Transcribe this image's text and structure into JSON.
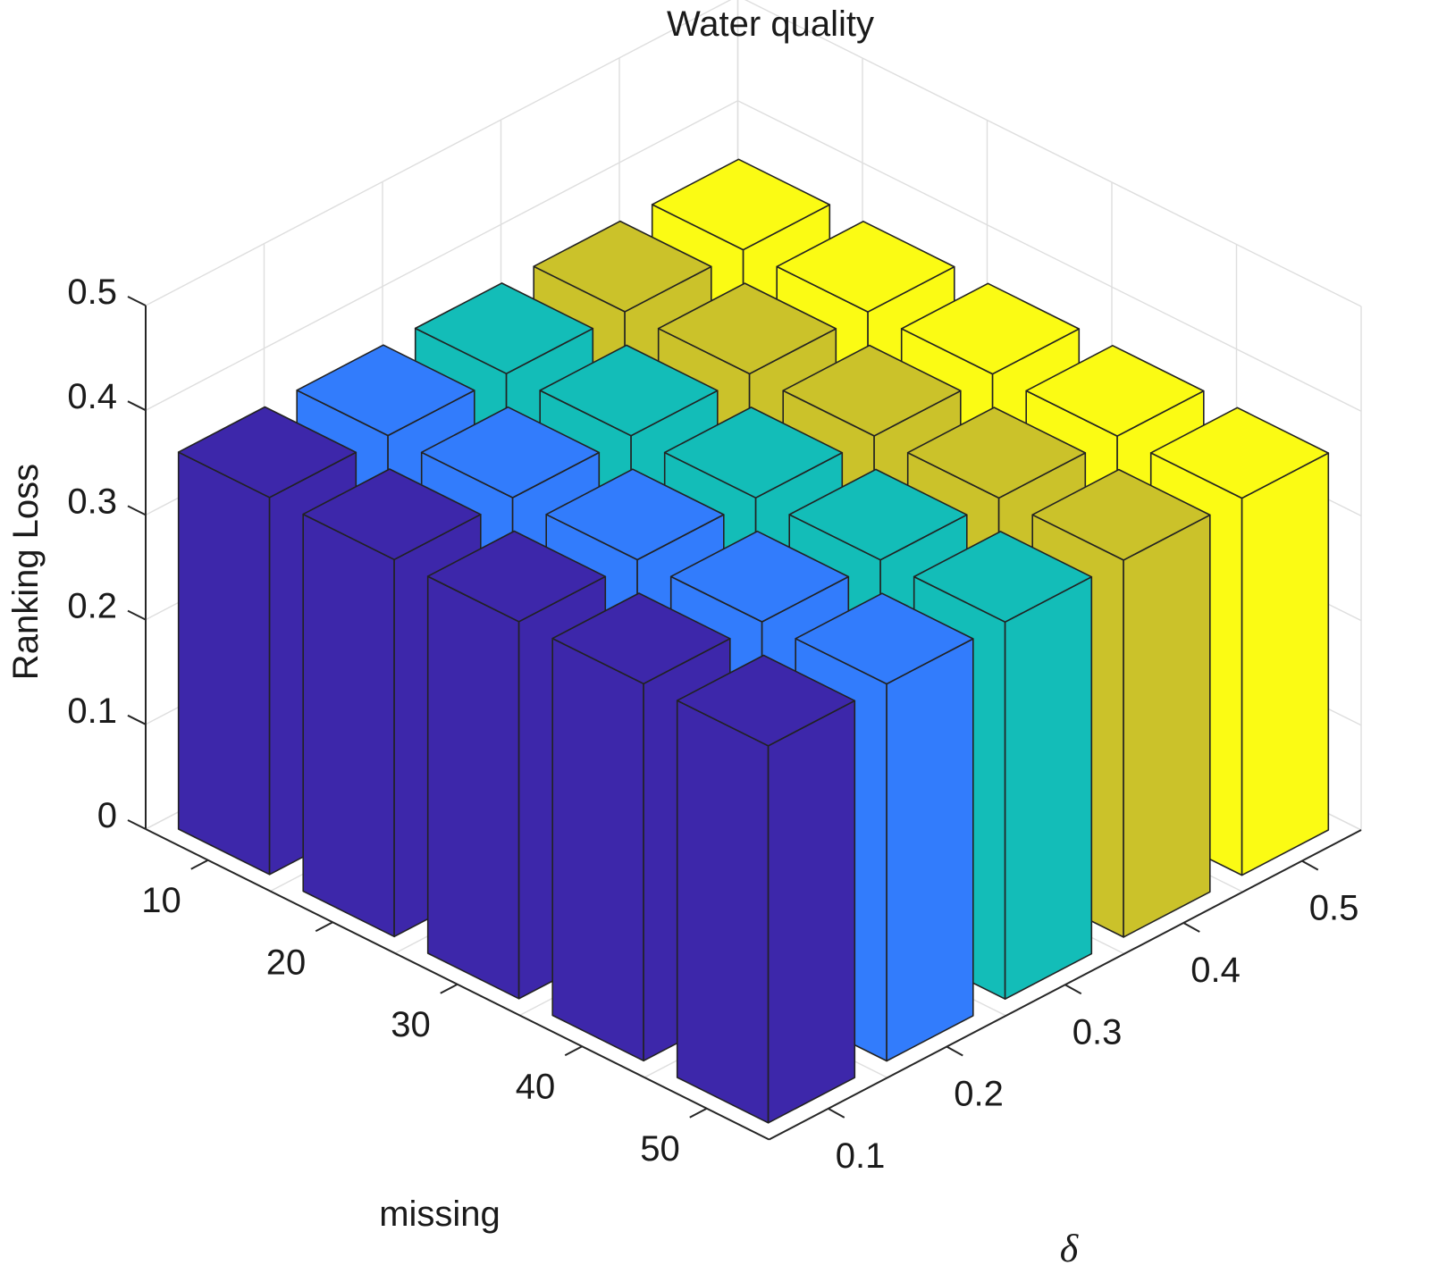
{
  "chart_data": {
    "type": "bar3d",
    "title": "Water quality",
    "xlabel": "missing",
    "ylabel": "δ",
    "zlabel": "Ranking Loss",
    "x_categories": [
      "10",
      "20",
      "30",
      "40",
      "50"
    ],
    "y_categories": [
      "0.1",
      "0.2",
      "0.3",
      "0.4",
      "0.5"
    ],
    "z_ticks": [
      "0",
      "0.1",
      "0.2",
      "0.3",
      "0.4",
      "0.5"
    ],
    "zlim": [
      0,
      0.5
    ],
    "grid": true,
    "series": [
      {
        "values": [
          0.36,
          0.36,
          0.36,
          0.36,
          0.36
        ],
        "color": "#3d27aa"
      },
      {
        "values": [
          0.36,
          0.36,
          0.36,
          0.36,
          0.36
        ],
        "color": "#327cfc"
      },
      {
        "values": [
          0.36,
          0.36,
          0.36,
          0.36,
          0.36
        ],
        "color": "#13bdb8"
      },
      {
        "values": [
          0.36,
          0.36,
          0.36,
          0.36,
          0.36
        ],
        "color": "#cbc22a"
      },
      {
        "values": [
          0.36,
          0.36,
          0.36,
          0.36,
          0.36
        ],
        "color": "#fbfb14"
      }
    ]
  }
}
